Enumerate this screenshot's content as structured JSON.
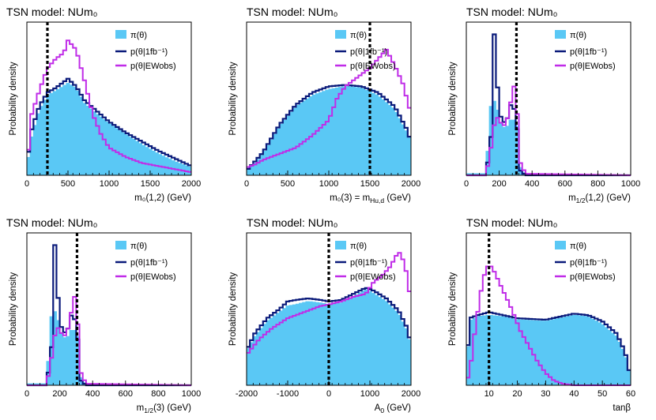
{
  "colors": {
    "prior": "#5ac8f5",
    "one_fb": "#0a1a7a",
    "ewobs": "#c02ce8",
    "ref": "#000000"
  },
  "legend": {
    "prior": "π(θ)",
    "one_fb": "p(θ|1fb⁻¹)",
    "ewobs": "p(θ|EWobs)"
  },
  "chart_data": [
    {
      "type": "histogram",
      "title": "TSN model: NUm₀",
      "xlabel": "m₀(1,2) (GeV)",
      "ylabel": "Probability density",
      "xlim": [
        0,
        2000
      ],
      "xticks": [
        0,
        500,
        1000,
        1500,
        2000
      ],
      "ymax": 1.0,
      "ref_x": 250,
      "series": {
        "prior": [
          [
            0,
            0.05
          ],
          [
            60,
            0.25
          ],
          [
            150,
            0.42
          ],
          [
            250,
            0.52
          ],
          [
            350,
            0.55
          ],
          [
            500,
            0.6
          ],
          [
            600,
            0.57
          ],
          [
            700,
            0.47
          ],
          [
            850,
            0.4
          ],
          [
            1000,
            0.34
          ],
          [
            1200,
            0.27
          ],
          [
            1400,
            0.2
          ],
          [
            1600,
            0.14
          ],
          [
            1800,
            0.09
          ],
          [
            2000,
            0.05
          ]
        ],
        "one_fb": [
          [
            0,
            0.08
          ],
          [
            60,
            0.3
          ],
          [
            150,
            0.45
          ],
          [
            250,
            0.54
          ],
          [
            350,
            0.57
          ],
          [
            500,
            0.63
          ],
          [
            600,
            0.58
          ],
          [
            700,
            0.49
          ],
          [
            850,
            0.42
          ],
          [
            1000,
            0.35
          ],
          [
            1200,
            0.28
          ],
          [
            1400,
            0.22
          ],
          [
            1600,
            0.16
          ],
          [
            1800,
            0.11
          ],
          [
            2000,
            0.06
          ]
        ],
        "ewobs": [
          [
            0,
            0.05
          ],
          [
            60,
            0.4
          ],
          [
            150,
            0.55
          ],
          [
            250,
            0.7
          ],
          [
            350,
            0.76
          ],
          [
            450,
            0.8
          ],
          [
            500,
            0.88
          ],
          [
            600,
            0.82
          ],
          [
            700,
            0.62
          ],
          [
            800,
            0.4
          ],
          [
            900,
            0.27
          ],
          [
            1000,
            0.18
          ],
          [
            1200,
            0.12
          ],
          [
            1400,
            0.08
          ],
          [
            1600,
            0.06
          ],
          [
            2000,
            0.02
          ]
        ]
      }
    },
    {
      "type": "histogram",
      "title": "TSN model: NUm₀",
      "xlabel": "m₀(3) = m",
      "xlabel_sub": "Hu,d",
      "xlabel_tail": " (GeV)",
      "ylabel": "Probability density",
      "xlim": [
        0,
        2000
      ],
      "xticks": [
        0,
        500,
        1000,
        1500,
        2000
      ],
      "ymax": 1.0,
      "ref_x": 1500,
      "series": {
        "prior": [
          [
            0,
            0.03
          ],
          [
            100,
            0.08
          ],
          [
            200,
            0.14
          ],
          [
            400,
            0.32
          ],
          [
            600,
            0.45
          ],
          [
            800,
            0.52
          ],
          [
            1000,
            0.56
          ],
          [
            1200,
            0.58
          ],
          [
            1400,
            0.57
          ],
          [
            1600,
            0.52
          ],
          [
            1800,
            0.43
          ],
          [
            1950,
            0.28
          ],
          [
            2000,
            0.22
          ]
        ],
        "one_fb": [
          [
            0,
            0.03
          ],
          [
            100,
            0.09
          ],
          [
            200,
            0.15
          ],
          [
            400,
            0.33
          ],
          [
            600,
            0.46
          ],
          [
            800,
            0.54
          ],
          [
            1000,
            0.58
          ],
          [
            1200,
            0.59
          ],
          [
            1400,
            0.58
          ],
          [
            1600,
            0.54
          ],
          [
            1800,
            0.45
          ],
          [
            1950,
            0.3
          ],
          [
            2000,
            0.22
          ]
        ],
        "ewobs": [
          [
            0,
            0.05
          ],
          [
            100,
            0.07
          ],
          [
            200,
            0.1
          ],
          [
            400,
            0.14
          ],
          [
            600,
            0.18
          ],
          [
            800,
            0.26
          ],
          [
            1000,
            0.36
          ],
          [
            1100,
            0.5
          ],
          [
            1200,
            0.58
          ],
          [
            1400,
            0.66
          ],
          [
            1500,
            0.7
          ],
          [
            1600,
            0.76
          ],
          [
            1700,
            0.82
          ],
          [
            1800,
            0.72
          ],
          [
            1900,
            0.6
          ],
          [
            2000,
            0.4
          ]
        ]
      }
    },
    {
      "type": "histogram",
      "title": "TSN model: NUm₀",
      "xlabel": "m",
      "xlabel_sub": "1/2",
      "xlabel_tail": "(1,2) (GeV)",
      "ylabel": "Probability density",
      "xlim": [
        0,
        1000
      ],
      "xticks": [
        0,
        200,
        400,
        600,
        800,
        1000
      ],
      "ymax": 1.0,
      "ref_x": 305,
      "series": {
        "prior": [
          [
            120,
            0.01
          ],
          [
            150,
            0.45
          ],
          [
            180,
            0.5
          ],
          [
            200,
            0.35
          ],
          [
            240,
            0.3
          ],
          [
            280,
            0.38
          ],
          [
            310,
            0.32
          ],
          [
            330,
            0.05
          ],
          [
            360,
            0.0
          ],
          [
            1000,
            0.0
          ]
        ],
        "one_fb": [
          [
            120,
            0.0
          ],
          [
            150,
            0.25
          ],
          [
            170,
            0.92
          ],
          [
            200,
            0.4
          ],
          [
            240,
            0.33
          ],
          [
            280,
            0.5
          ],
          [
            310,
            0.3
          ],
          [
            330,
            0.03
          ],
          [
            360,
            0.0
          ],
          [
            1000,
            0.0
          ]
        ],
        "ewobs": [
          [
            120,
            0.0
          ],
          [
            150,
            0.18
          ],
          [
            180,
            0.4
          ],
          [
            200,
            0.35
          ],
          [
            240,
            0.32
          ],
          [
            290,
            0.58
          ],
          [
            310,
            0.4
          ],
          [
            330,
            0.08
          ],
          [
            360,
            0.01
          ],
          [
            1000,
            0.0
          ]
        ]
      }
    },
    {
      "type": "histogram",
      "title": "TSN model: NUm₀",
      "xlabel": "m",
      "xlabel_sub": "1/2",
      "xlabel_tail": "(3) (GeV)",
      "ylabel": "Probability density",
      "xlim": [
        0,
        1000
      ],
      "xticks": [
        0,
        200,
        400,
        600,
        800,
        1000
      ],
      "ymax": 1.0,
      "ref_x": 305,
      "series": {
        "prior": [
          [
            120,
            0.01
          ],
          [
            150,
            0.45
          ],
          [
            180,
            0.5
          ],
          [
            200,
            0.35
          ],
          [
            240,
            0.3
          ],
          [
            280,
            0.38
          ],
          [
            310,
            0.32
          ],
          [
            330,
            0.05
          ],
          [
            360,
            0.0
          ],
          [
            1000,
            0.0
          ]
        ],
        "one_fb": [
          [
            120,
            0.0
          ],
          [
            150,
            0.25
          ],
          [
            170,
            0.92
          ],
          [
            200,
            0.4
          ],
          [
            240,
            0.33
          ],
          [
            280,
            0.5
          ],
          [
            310,
            0.3
          ],
          [
            330,
            0.03
          ],
          [
            360,
            0.0
          ],
          [
            1000,
            0.0
          ]
        ],
        "ewobs": [
          [
            120,
            0.0
          ],
          [
            150,
            0.18
          ],
          [
            180,
            0.4
          ],
          [
            200,
            0.35
          ],
          [
            240,
            0.32
          ],
          [
            290,
            0.58
          ],
          [
            310,
            0.4
          ],
          [
            330,
            0.08
          ],
          [
            360,
            0.01
          ],
          [
            1000,
            0.0
          ]
        ]
      }
    },
    {
      "type": "histogram",
      "title": "TSN model: NUm₀",
      "xlabel": "A",
      "xlabel_sub": "0",
      "xlabel_tail": " (GeV)",
      "ylabel": "Probability density",
      "xlim": [
        -2000,
        2000
      ],
      "xticks": [
        -2000,
        -1000,
        0,
        1000,
        2000
      ],
      "ymax": 1.0,
      "ref_x": 0,
      "series": {
        "prior": [
          [
            -2000,
            0.22
          ],
          [
            -1800,
            0.32
          ],
          [
            -1500,
            0.42
          ],
          [
            -1200,
            0.48
          ],
          [
            -1000,
            0.52
          ],
          [
            -800,
            0.53
          ],
          [
            -500,
            0.55
          ],
          [
            -200,
            0.54
          ],
          [
            0,
            0.53
          ],
          [
            300,
            0.54
          ],
          [
            600,
            0.58
          ],
          [
            900,
            0.63
          ],
          [
            1100,
            0.6
          ],
          [
            1400,
            0.55
          ],
          [
            1700,
            0.47
          ],
          [
            1900,
            0.36
          ],
          [
            2000,
            0.26
          ]
        ],
        "one_fb": [
          [
            -2000,
            0.23
          ],
          [
            -1800,
            0.34
          ],
          [
            -1500,
            0.44
          ],
          [
            -1200,
            0.5
          ],
          [
            -1000,
            0.55
          ],
          [
            -800,
            0.56
          ],
          [
            -500,
            0.57
          ],
          [
            -200,
            0.56
          ],
          [
            0,
            0.55
          ],
          [
            300,
            0.56
          ],
          [
            600,
            0.6
          ],
          [
            900,
            0.64
          ],
          [
            1100,
            0.62
          ],
          [
            1400,
            0.57
          ],
          [
            1700,
            0.49
          ],
          [
            1900,
            0.38
          ],
          [
            2000,
            0.27
          ]
        ],
        "ewobs": [
          [
            -2000,
            0.2
          ],
          [
            -1700,
            0.3
          ],
          [
            -1400,
            0.37
          ],
          [
            -1000,
            0.44
          ],
          [
            -600,
            0.48
          ],
          [
            -200,
            0.52
          ],
          [
            0,
            0.53
          ],
          [
            300,
            0.55
          ],
          [
            600,
            0.58
          ],
          [
            900,
            0.6
          ],
          [
            1100,
            0.68
          ],
          [
            1300,
            0.72
          ],
          [
            1500,
            0.78
          ],
          [
            1700,
            0.88
          ],
          [
            1850,
            0.8
          ],
          [
            2000,
            0.55
          ]
        ]
      }
    },
    {
      "type": "histogram",
      "title": "TSN model: NUm₀",
      "xlabel": "tanβ",
      "ylabel": "Probability density",
      "xlim": [
        2,
        60
      ],
      "xticks": [
        10,
        20,
        30,
        40,
        50,
        60
      ],
      "ymax": 1.0,
      "ref_x": 10,
      "series": {
        "prior": [
          [
            2,
            0.02
          ],
          [
            3,
            0.42
          ],
          [
            6,
            0.45
          ],
          [
            10,
            0.46
          ],
          [
            15,
            0.45
          ],
          [
            20,
            0.43
          ],
          [
            30,
            0.42
          ],
          [
            40,
            0.46
          ],
          [
            45,
            0.45
          ],
          [
            50,
            0.4
          ],
          [
            55,
            0.32
          ],
          [
            58,
            0.2
          ],
          [
            60,
            0.05
          ]
        ],
        "one_fb": [
          [
            2,
            0.02
          ],
          [
            3,
            0.44
          ],
          [
            6,
            0.46
          ],
          [
            10,
            0.48
          ],
          [
            15,
            0.46
          ],
          [
            20,
            0.44
          ],
          [
            30,
            0.43
          ],
          [
            40,
            0.47
          ],
          [
            45,
            0.46
          ],
          [
            50,
            0.42
          ],
          [
            55,
            0.34
          ],
          [
            58,
            0.22
          ],
          [
            60,
            0.05
          ]
        ],
        "ewobs": [
          [
            3,
            0.05
          ],
          [
            5,
            0.35
          ],
          [
            7,
            0.6
          ],
          [
            9,
            0.78
          ],
          [
            11,
            0.78
          ],
          [
            13,
            0.7
          ],
          [
            15,
            0.62
          ],
          [
            18,
            0.5
          ],
          [
            21,
            0.36
          ],
          [
            24,
            0.26
          ],
          [
            27,
            0.16
          ],
          [
            30,
            0.08
          ],
          [
            33,
            0.03
          ],
          [
            36,
            0.01
          ],
          [
            40,
            0.0
          ],
          [
            60,
            0.0
          ]
        ]
      }
    }
  ]
}
